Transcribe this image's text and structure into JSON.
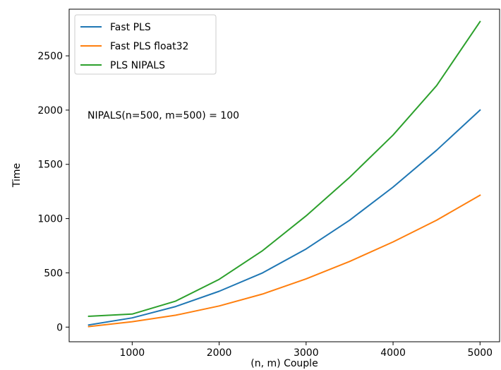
{
  "chart_data": {
    "type": "line",
    "xlabel": "(n, m) Couple",
    "ylabel": "Time",
    "annotation": "NIPALS(n=500, m=500) = 100",
    "xlim": [
      275,
      5225
    ],
    "ylim": [
      -135,
      2930
    ],
    "xticks": [
      1000,
      2000,
      3000,
      4000,
      5000
    ],
    "yticks": [
      0,
      500,
      1000,
      1500,
      2000,
      2500
    ],
    "grid": false,
    "legend_position": "top-left",
    "x": [
      500,
      1000,
      1500,
      2000,
      2500,
      3000,
      3500,
      4000,
      4500,
      5000
    ],
    "series": [
      {
        "name": "Fast PLS",
        "color": "#1f77b4",
        "values": [
          20,
          85,
          190,
          330,
          500,
          720,
          985,
          1290,
          1630,
          2000
        ]
      },
      {
        "name": "Fast PLS float32",
        "color": "#ff7f0e",
        "values": [
          5,
          50,
          110,
          195,
          305,
          445,
          605,
          785,
          985,
          1215
        ]
      },
      {
        "name": "PLS NIPALS",
        "color": "#2ca02c",
        "values": [
          100,
          120,
          240,
          440,
          705,
          1025,
          1380,
          1770,
          2225,
          2815
        ]
      }
    ]
  }
}
